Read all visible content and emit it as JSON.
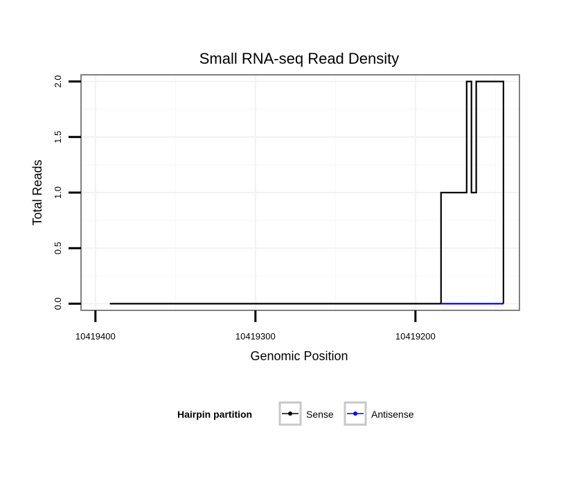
{
  "chart_data": {
    "type": "line",
    "title": "Small RNA-seq Read Density",
    "xlabel": "Genomic Position",
    "ylabel": "Total Reads",
    "x_reversed": true,
    "xlim": [
      10419409,
      10419135
    ],
    "ylim": [
      -0.06,
      2.06
    ],
    "x_ticks": [
      {
        "value": 10419400,
        "label": "10419400"
      },
      {
        "value": 10419300,
        "label": "10419300"
      },
      {
        "value": 10419200,
        "label": "10419200"
      }
    ],
    "y_ticks": [
      {
        "value": 0.0,
        "label": "0.0"
      },
      {
        "value": 0.5,
        "label": "0.5"
      },
      {
        "value": 1.0,
        "label": "1.0"
      },
      {
        "value": 1.5,
        "label": "1.5"
      },
      {
        "value": 2.0,
        "label": "2.0"
      }
    ],
    "grid": true,
    "series": [
      {
        "name": "Sense",
        "color": "#000000",
        "x": [
          10419391,
          10419184,
          10419184,
          10419168,
          10419168,
          10419165,
          10419165,
          10419162,
          10419162,
          10419161,
          10419161,
          10419145,
          10419145
        ],
        "y": [
          0,
          0,
          1,
          1,
          2,
          2,
          1,
          1,
          2,
          2,
          2,
          2,
          0
        ]
      },
      {
        "name": "Antisense",
        "color": "#0000ff",
        "x": [
          10419184,
          10419145
        ],
        "y": [
          0,
          0
        ]
      }
    ],
    "legend": {
      "title": "Hairpin partition",
      "position": "bottom",
      "entries": [
        "Sense",
        "Antisense"
      ]
    }
  }
}
